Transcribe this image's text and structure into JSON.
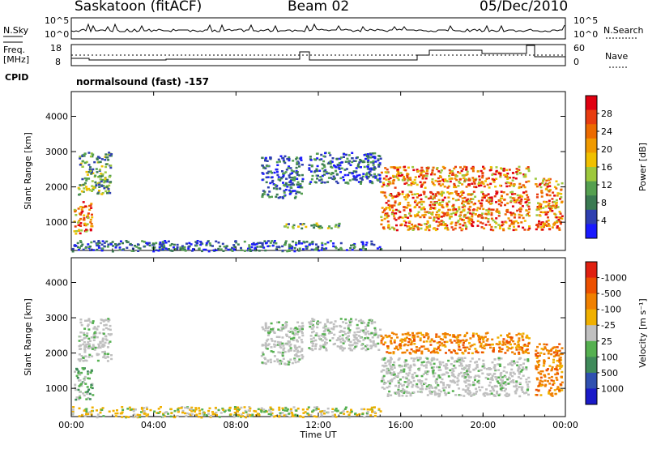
{
  "header": {
    "station": "Saskatoon (fitACF)",
    "beam": "Beam 02",
    "date": "05/Dec/2010"
  },
  "top_panels": {
    "nsky_label": "N.Sky",
    "nsky_ticks": [
      "10^5",
      "10^0"
    ],
    "nsearch_label": "N.Search",
    "nsearch_ticks": [
      "10^5",
      "10^0"
    ],
    "freq_label": "Freq.",
    "freq_unit": "[MHz]",
    "freq_ticks": [
      "18",
      "8"
    ],
    "nave_label": "Nave",
    "nave_ticks": [
      "60",
      "0"
    ],
    "cpid_label": "CPID",
    "cpid_text": "normalsound (fast) -157"
  },
  "chart_data": [
    {
      "type": "heatmap",
      "title": "",
      "xlabel": "Time UT",
      "ylabel": "Slant Range [km]",
      "x_ticks": [
        "00:00",
        "04:00",
        "08:00",
        "12:00",
        "16:00",
        "20:00",
        "00:00"
      ],
      "y_ticks": [
        "1000",
        "2000",
        "3000",
        "4000"
      ],
      "ylim": [
        200,
        4700
      ],
      "colorbar": {
        "label": "Power [dB]",
        "ticks": [
          "4",
          "8",
          "12",
          "16",
          "20",
          "24",
          "28"
        ],
        "colors": [
          "#1a1aff",
          "#2f3fb0",
          "#3a7a52",
          "#55a050",
          "#9dc83c",
          "#f0c000",
          "#f09a00",
          "#ec6a00",
          "#e83c10",
          "#e00010"
        ]
      },
      "regions": [
        {
          "t": [
            0.1,
            1.0
          ],
          "r": [
            700,
            1600
          ],
          "level": "high"
        },
        {
          "t": [
            0.3,
            1.9
          ],
          "r": [
            1800,
            3000
          ],
          "level": "mid"
        },
        {
          "t": [
            9.2,
            11.2
          ],
          "r": [
            1700,
            2900
          ],
          "level": "low"
        },
        {
          "t": [
            11.5,
            15.0
          ],
          "r": [
            2100,
            3000
          ],
          "level": "low"
        },
        {
          "t": [
            15.0,
            22.2
          ],
          "r": [
            2000,
            2600
          ],
          "level": "high"
        },
        {
          "t": [
            15.0,
            22.2
          ],
          "r": [
            800,
            1900
          ],
          "level": "high"
        },
        {
          "t": [
            22.5,
            23.8
          ],
          "r": [
            800,
            2300
          ],
          "level": "high"
        },
        {
          "t": [
            10.0,
            13.0
          ],
          "r": [
            850,
            1000
          ],
          "level": "mid"
        },
        {
          "t": [
            0.0,
            15.0
          ],
          "r": [
            200,
            500
          ],
          "level": "low"
        }
      ]
    },
    {
      "type": "heatmap",
      "title": "",
      "xlabel": "Time UT",
      "ylabel": "Slant Range [km]",
      "x_ticks": [
        "00:00",
        "04:00",
        "08:00",
        "12:00",
        "16:00",
        "20:00",
        "00:00"
      ],
      "y_ticks": [
        "1000",
        "2000",
        "3000",
        "4000"
      ],
      "ylim": [
        200,
        4700
      ],
      "colorbar": {
        "label": "Velocity [m s⁻¹]",
        "ticks": [
          "1000",
          "500",
          "100",
          "25",
          "-25",
          "-100",
          "-500",
          "-1000"
        ],
        "colors": [
          "#1a1ac8",
          "#2f50b0",
          "#3f8a5a",
          "#55b050",
          "#c0c0c0",
          "#f0b000",
          "#f08000",
          "#ec5000",
          "#e02010"
        ]
      },
      "regions": [
        {
          "t": [
            0.1,
            1.0
          ],
          "r": [
            700,
            1600
          ],
          "level": "green"
        },
        {
          "t": [
            0.3,
            1.9
          ],
          "r": [
            1800,
            3000
          ],
          "level": "grey"
        },
        {
          "t": [
            9.2,
            11.2
          ],
          "r": [
            1700,
            2900
          ],
          "level": "grey"
        },
        {
          "t": [
            11.5,
            15.0
          ],
          "r": [
            2100,
            3000
          ],
          "level": "grey"
        },
        {
          "t": [
            15.0,
            22.2
          ],
          "r": [
            2000,
            2600
          ],
          "level": "orange"
        },
        {
          "t": [
            15.0,
            22.2
          ],
          "r": [
            800,
            1900
          ],
          "level": "grey"
        },
        {
          "t": [
            22.5,
            23.8
          ],
          "r": [
            800,
            2300
          ],
          "level": "orange"
        },
        {
          "t": [
            0.0,
            15.0
          ],
          "r": [
            200,
            500
          ],
          "level": "yellow"
        }
      ]
    }
  ]
}
